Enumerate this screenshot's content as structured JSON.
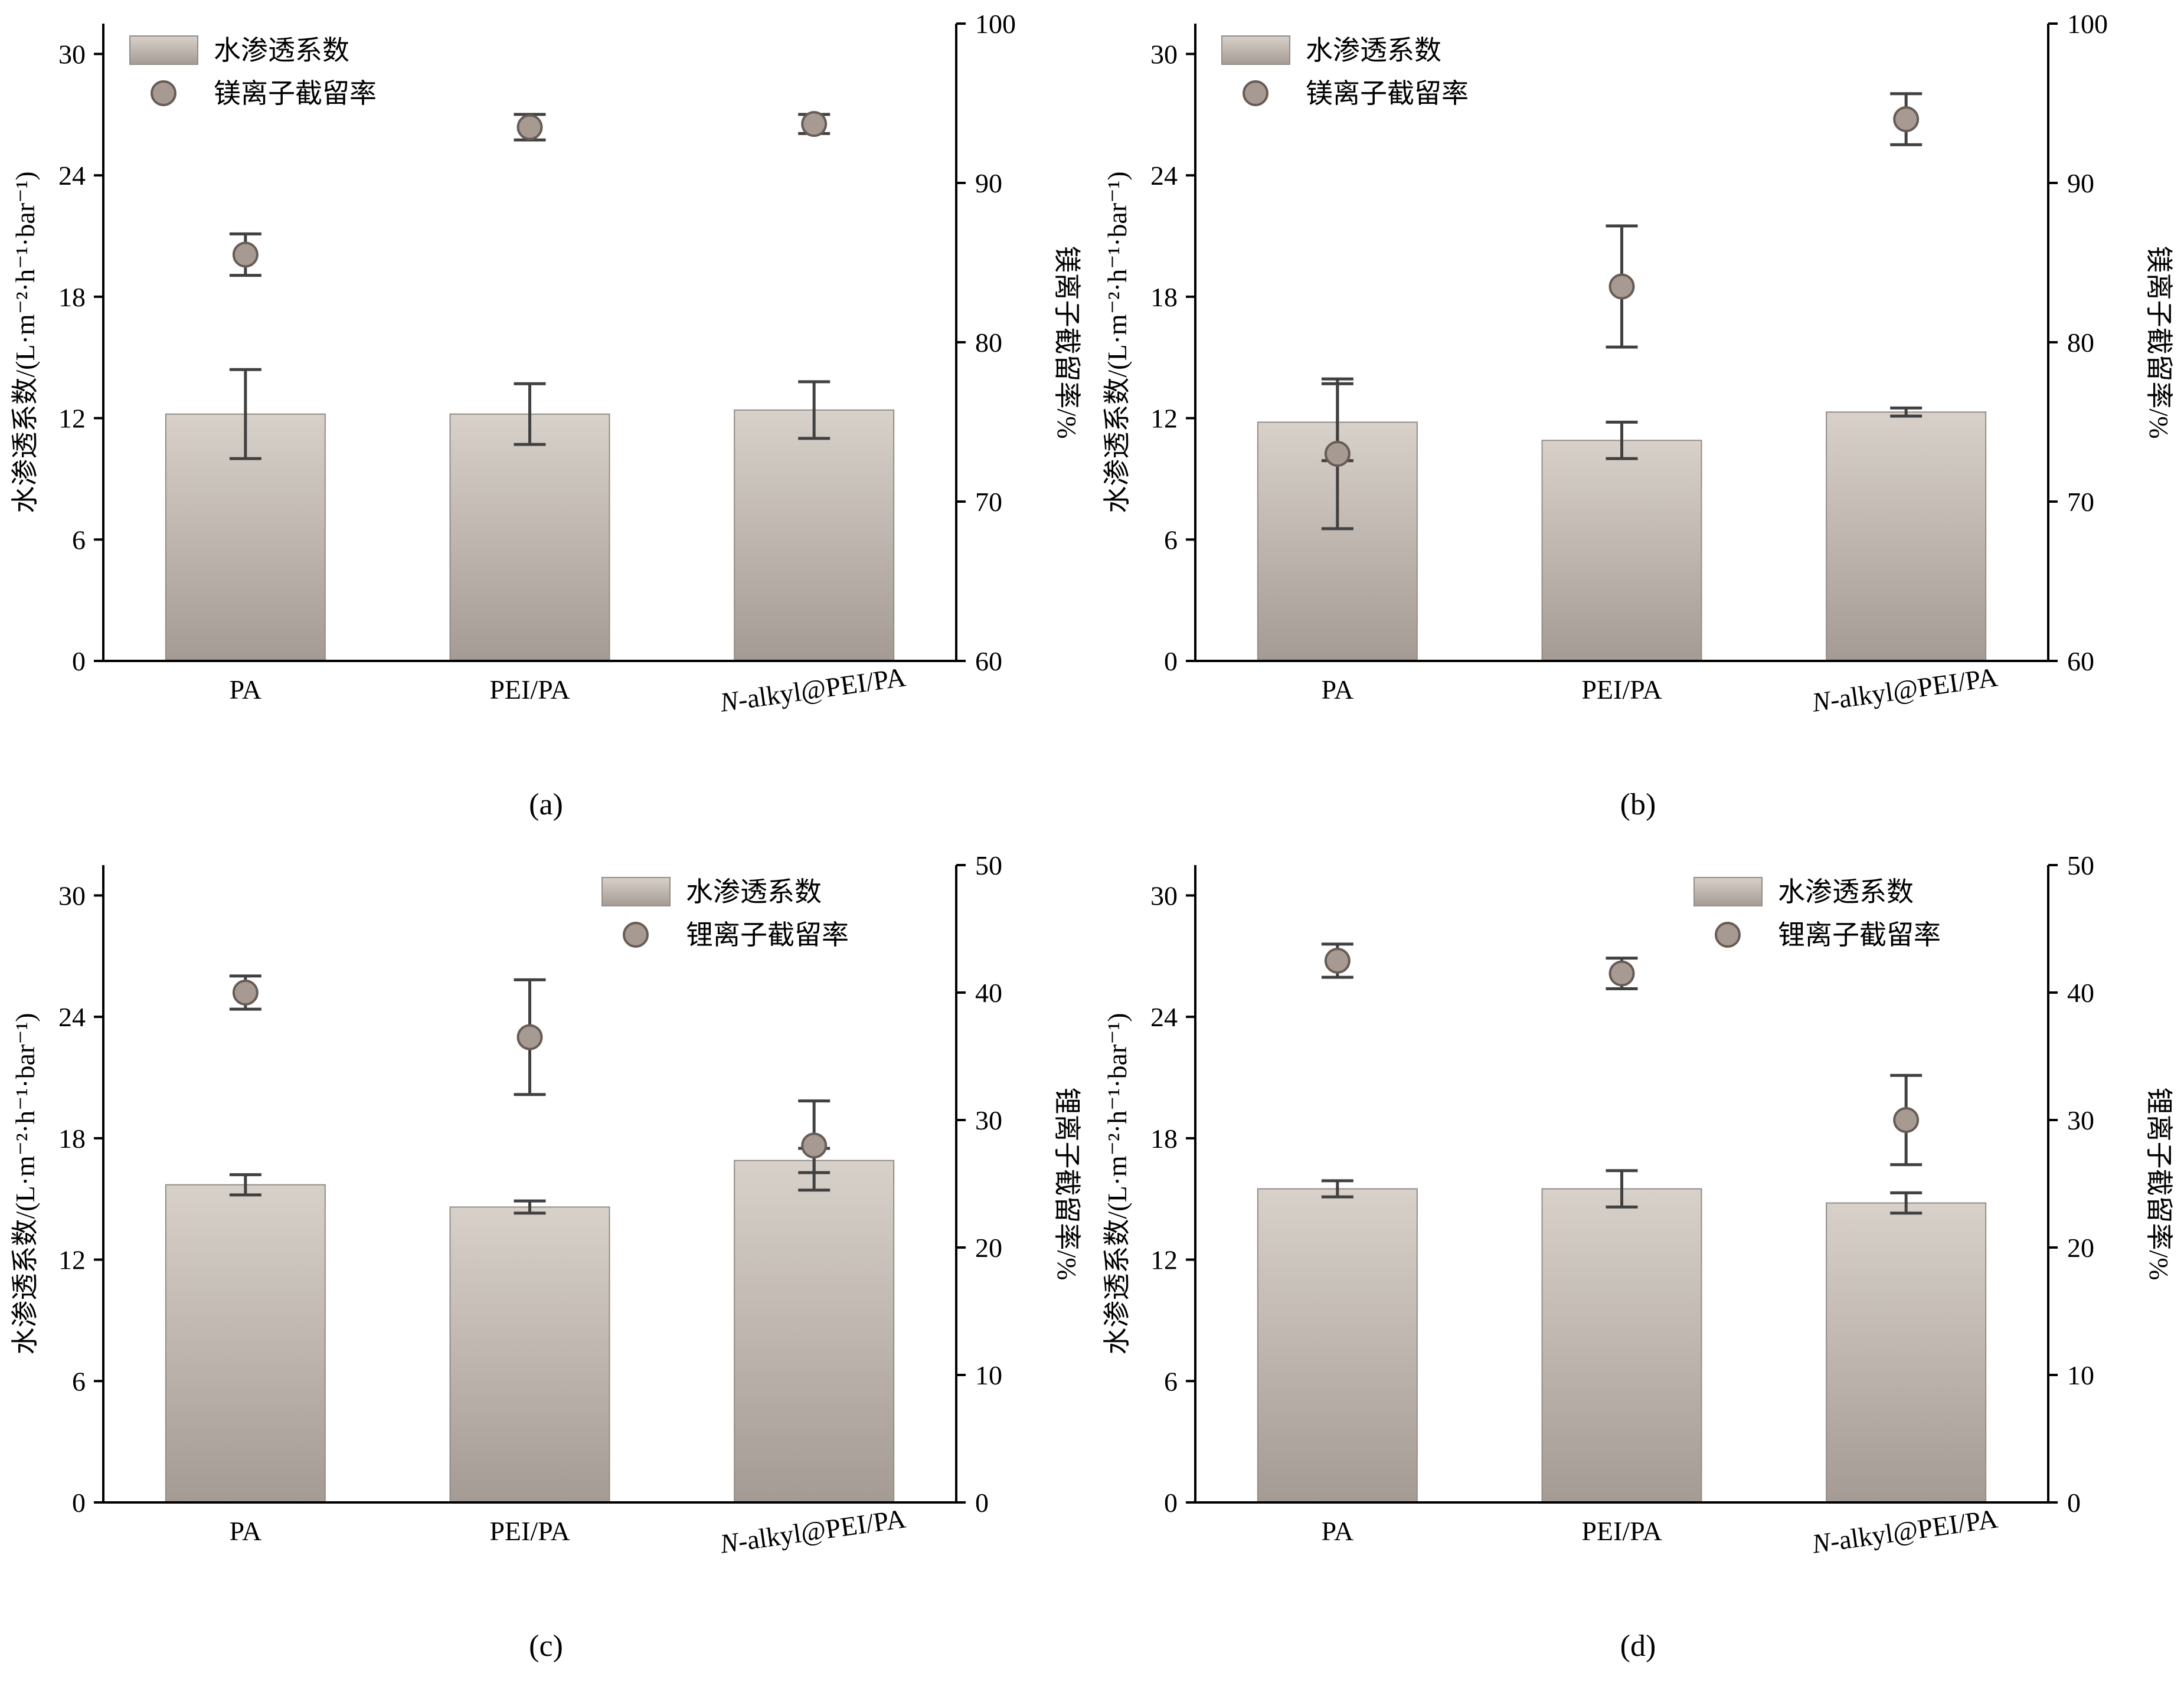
{
  "colors": {
    "bar_top": "#d8d1ca",
    "bar_bottom": "#a49b94",
    "bar_edge": "#948c86",
    "dot_fill": "#a69a93",
    "dot_edge": "#675c55",
    "error": "#404040",
    "axis": "#000000",
    "text": "#000000"
  },
  "chart_data": [
    {
      "id": "a",
      "type": "bar",
      "caption": "(a)",
      "categories": [
        "PA",
        "PEI/PA",
        "N-alkyl@PEI/PA"
      ],
      "left_axis": {
        "label": "水渗透系数/(L·m⁻²·h⁻¹·bar⁻¹)",
        "ticks": [
          0,
          6,
          12,
          18,
          24,
          30
        ],
        "range": [
          0,
          31.5
        ]
      },
      "right_axis": {
        "label": "镁离子截留率/%",
        "ticks": [
          60,
          70,
          80,
          90,
          100
        ],
        "range": [
          60,
          100
        ]
      },
      "bars": {
        "name": "水渗透系数",
        "values": [
          12.2,
          12.2,
          12.4
        ],
        "errors": [
          2.2,
          1.5,
          1.4
        ]
      },
      "dots": {
        "name": "镁离子截留率",
        "values": [
          85.5,
          93.5,
          93.7
        ],
        "errors": [
          1.3,
          0.8,
          0.6
        ]
      },
      "legend_pos": "top-left"
    },
    {
      "id": "b",
      "type": "bar",
      "caption": "(b)",
      "categories": [
        "PA",
        "PEI/PA",
        "N-alkyl@PEI/PA"
      ],
      "left_axis": {
        "label": "水渗透系数/(L·m⁻²·h⁻¹·bar⁻¹)",
        "ticks": [
          0,
          6,
          12,
          18,
          24,
          30
        ],
        "range": [
          0,
          31.5
        ]
      },
      "right_axis": {
        "label": "镁离子截留率/%",
        "ticks": [
          60,
          70,
          80,
          90,
          100
        ],
        "range": [
          60,
          100
        ]
      },
      "bars": {
        "name": "水渗透系数",
        "values": [
          11.8,
          10.9,
          12.3
        ],
        "errors": [
          1.9,
          0.9,
          0.2
        ]
      },
      "dots": {
        "name": "镁离子截留率",
        "values": [
          73.0,
          83.5,
          94.0
        ],
        "errors": [
          4.7,
          3.8,
          1.6
        ]
      },
      "legend_pos": "top-left"
    },
    {
      "id": "c",
      "type": "bar",
      "caption": "(c)",
      "categories": [
        "PA",
        "PEI/PA",
        "N-alkyl@PEI/PA"
      ],
      "left_axis": {
        "label": "水渗透系数/(L·m⁻²·h⁻¹·bar⁻¹)",
        "ticks": [
          0,
          6,
          12,
          18,
          24,
          30
        ],
        "range": [
          0,
          31.5
        ]
      },
      "right_axis": {
        "label": "锂离子截留率/%",
        "ticks": [
          0,
          10,
          20,
          30,
          40,
          50
        ],
        "range": [
          0,
          50
        ]
      },
      "bars": {
        "name": "水渗透系数",
        "values": [
          15.7,
          14.6,
          16.9
        ],
        "errors": [
          0.5,
          0.3,
          0.6
        ]
      },
      "dots": {
        "name": "锂离子截留率",
        "values": [
          40.0,
          36.5,
          28.0
        ],
        "errors": [
          1.3,
          4.5,
          3.5
        ]
      },
      "legend_pos": "top-right"
    },
    {
      "id": "d",
      "type": "bar",
      "caption": "(d)",
      "categories": [
        "PA",
        "PEI/PA",
        "N-alkyl@PEI/PA"
      ],
      "left_axis": {
        "label": "水渗透系数/(L·m⁻²·h⁻¹·bar⁻¹)",
        "ticks": [
          0,
          6,
          12,
          18,
          24,
          30
        ],
        "range": [
          0,
          31.5
        ]
      },
      "right_axis": {
        "label": "锂离子截留率/%",
        "ticks": [
          0,
          10,
          20,
          30,
          40,
          50
        ],
        "range": [
          0,
          50
        ]
      },
      "bars": {
        "name": "水渗透系数",
        "values": [
          15.5,
          15.5,
          14.8
        ],
        "errors": [
          0.4,
          0.9,
          0.5
        ]
      },
      "dots": {
        "name": "锂离子截留率",
        "values": [
          42.5,
          41.5,
          30.0
        ],
        "errors": [
          1.3,
          1.2,
          3.5
        ]
      },
      "legend_pos": "top-right"
    }
  ]
}
